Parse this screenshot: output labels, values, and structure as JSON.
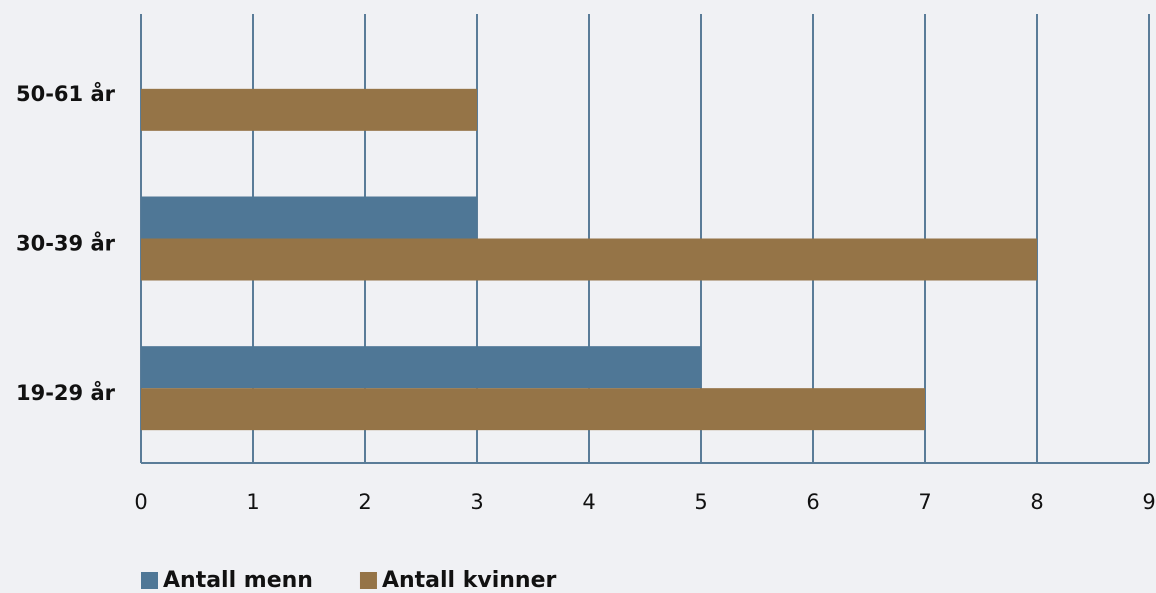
{
  "chart_data": {
    "type": "hbar",
    "categories": [
      "50-61 år",
      "30-39 år",
      "19-29 år"
    ],
    "series": [
      {
        "name": "Antall menn",
        "color": "#4f7796",
        "values": [
          0,
          3,
          5
        ]
      },
      {
        "name": "Antall kvinner",
        "color": "#957447",
        "values": [
          3,
          8,
          7
        ]
      }
    ],
    "xlim": [
      0,
      9
    ],
    "xticks": [
      0,
      1,
      2,
      3,
      4,
      5,
      6,
      7,
      8,
      9
    ],
    "grid": true,
    "grid_color": "#5a7c98",
    "legend": "bottom"
  }
}
